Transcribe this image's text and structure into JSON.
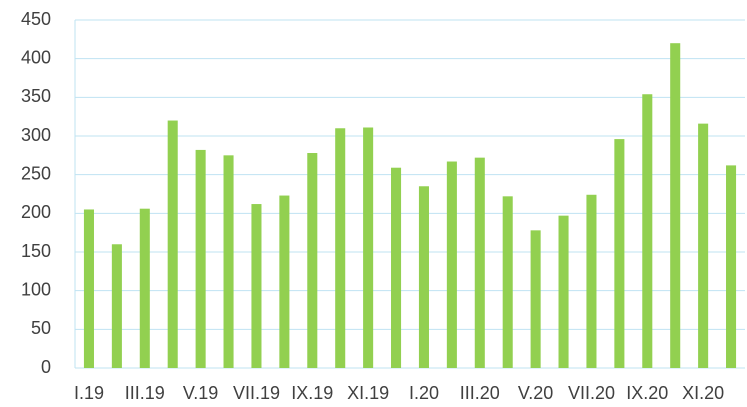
{
  "chart_data": {
    "type": "bar",
    "categories": [
      "I.19",
      null,
      "III.19",
      null,
      "V.19",
      null,
      "VII.19",
      null,
      "IX.19",
      null,
      "XI.19",
      null,
      "I.20",
      null,
      "III.20",
      null,
      "V.20",
      null,
      "VII.20",
      null,
      "IX.20",
      null,
      "XI.20",
      null
    ],
    "values": [
      205,
      160,
      206,
      320,
      282,
      275,
      212,
      223,
      278,
      310,
      311,
      259,
      235,
      267,
      272,
      222,
      178,
      197,
      224,
      296,
      354,
      420,
      316,
      262
    ],
    "color": "#92d050",
    "ylim": [
      0,
      450
    ],
    "yticks": [
      0,
      50,
      100,
      150,
      200,
      250,
      300,
      350,
      400,
      450
    ],
    "grid": true
  }
}
